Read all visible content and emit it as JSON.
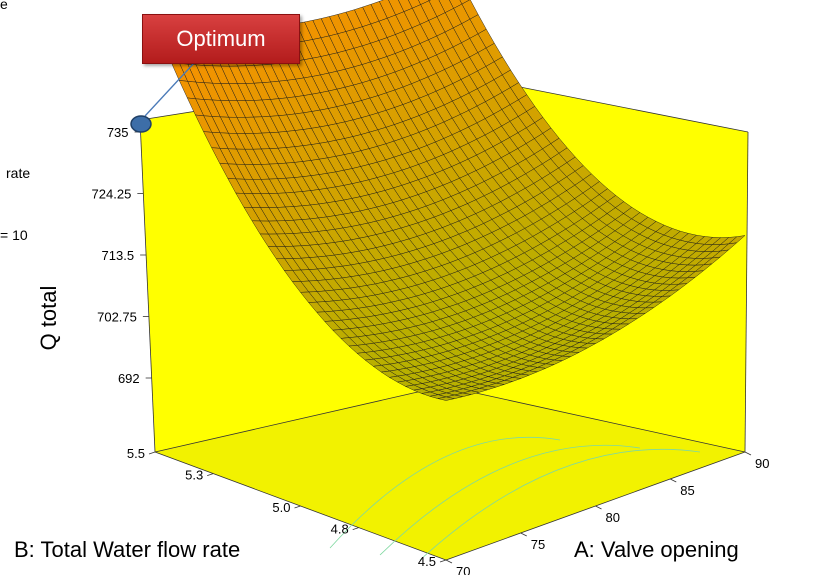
{
  "chart_data": {
    "type": "surface3d",
    "zlabel": "Q total",
    "xlabel": "A: Valve opening",
    "ylabel": "B: Total Water flow  rate",
    "x_ticks": [
      "70",
      "75",
      "80",
      "85",
      "90"
    ],
    "y_ticks": [
      "4.5",
      "4.8",
      "5.0",
      "5.3",
      "5.5"
    ],
    "z_ticks": [
      "692",
      "702.75",
      "713.5",
      "724.25",
      "735"
    ],
    "xlim": [
      70,
      90
    ],
    "ylim": [
      4.5,
      5.5
    ],
    "zlim": [
      692,
      735
    ],
    "surface": {
      "grid_size": 36,
      "corner_values": {
        "A70_B5.5": 735,
        "A90_B5.5": 726,
        "A70_B4.5": 688,
        "A90_B4.5": 698
      },
      "curvature_along_A": 4.5,
      "curvature_along_B": 14
    },
    "optimum_point": {
      "A": 70,
      "B": 5.5,
      "value": 735
    },
    "annotation": "Optimum",
    "side_fragments": [
      "e",
      "rate",
      "= 10"
    ],
    "colors": {
      "walls": "#ffff00",
      "floor": "#f2f200",
      "surface_high": "#ff8c00",
      "surface_low": "#b8b000",
      "mesh": "#1a1a1a",
      "callout": "#c62828",
      "marker": "#3d6ea8"
    }
  }
}
